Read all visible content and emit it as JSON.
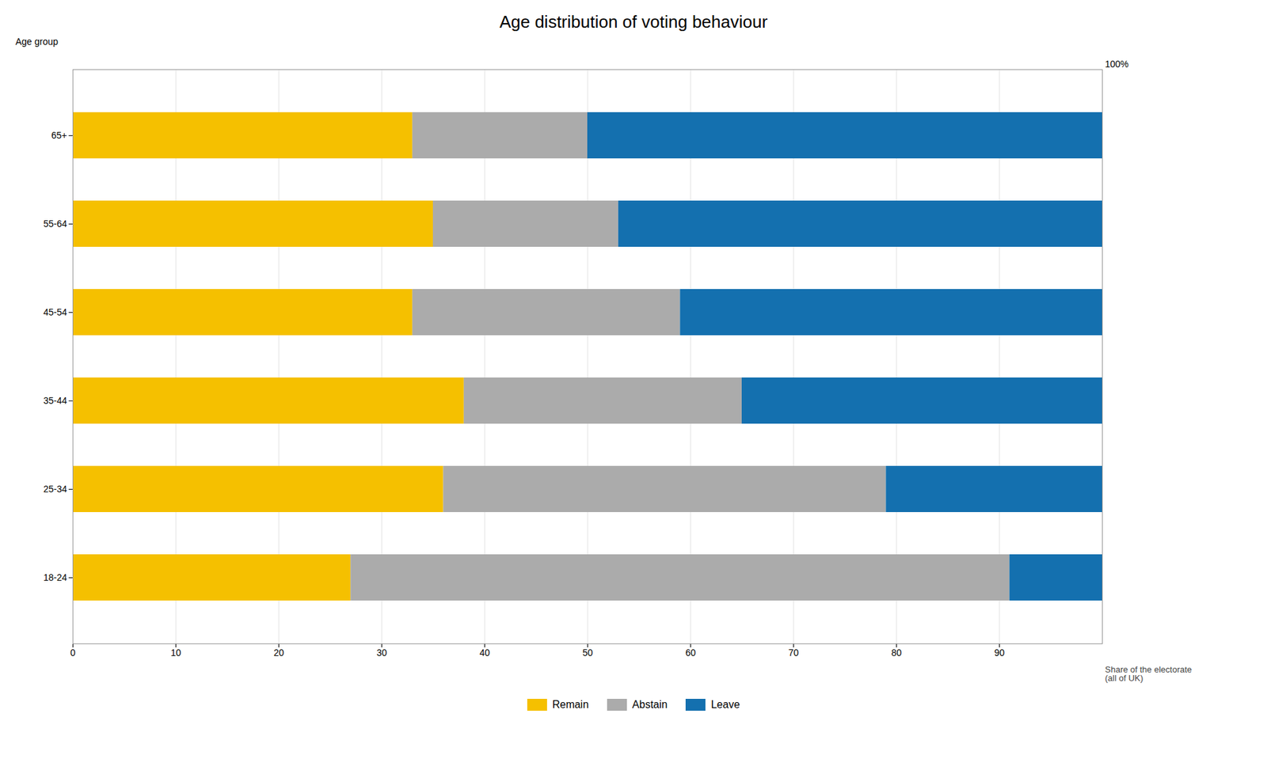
{
  "chart_data": {
    "type": "bar",
    "orientation": "horizontal",
    "stacked": true,
    "title": "Age distribution of voting behaviour",
    "ylabel": "Age group",
    "categories": [
      "65+",
      "55-64",
      "45-54",
      "35-44",
      "25-34",
      "18-24"
    ],
    "series": [
      {
        "name": "Remain",
        "color": "#F5C000",
        "values": [
          33,
          35,
          33,
          38,
          36,
          27
        ]
      },
      {
        "name": "Abstain",
        "color": "#ABABAB",
        "values": [
          17,
          18,
          26,
          27,
          43,
          64
        ]
      },
      {
        "name": "Leave",
        "color": "#1470AF",
        "values": [
          50,
          47,
          41,
          35,
          21,
          9
        ]
      }
    ],
    "xlim": [
      0,
      100
    ],
    "xticks": [
      0,
      10,
      20,
      30,
      40,
      50,
      60,
      70,
      80,
      90
    ],
    "grid": true,
    "legend": "bottom",
    "annotations": [
      "100%",
      "Share of the electorate\n(all of UK)"
    ]
  }
}
